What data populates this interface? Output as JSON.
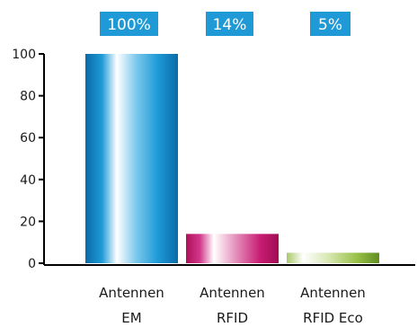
{
  "chart_data": {
    "type": "bar",
    "categories": [
      {
        "line1": "Antennen",
        "line2": "EM"
      },
      {
        "line1": "Antennen",
        "line2": "RFID"
      },
      {
        "line1": "Antennen",
        "line2": "RFID Eco"
      }
    ],
    "values": [
      100,
      14,
      5
    ],
    "data_labels": [
      "100%",
      "14%",
      "5%"
    ],
    "ylim": [
      0,
      100
    ],
    "yticks": [
      0,
      20,
      40,
      60,
      80,
      100
    ],
    "grid": false,
    "title": "",
    "xlabel": "",
    "ylabel": ""
  },
  "colors": {
    "bar_em_dark": "#0a6aa8",
    "bar_em_mid": "#1e9bd7",
    "bar_rfid_dark": "#b0105a",
    "bar_rfid_mid": "#d2378a",
    "bar_eco_dark": "#5f8e1e",
    "bar_eco_mid": "#9bc24a",
    "label_box": "#1f9ad6",
    "axis": "#000000"
  }
}
